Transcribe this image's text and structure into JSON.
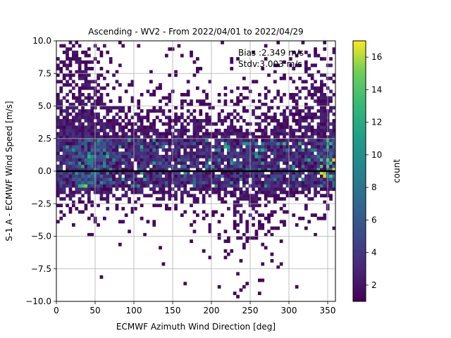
{
  "chart_data": {
    "type": "heatmap",
    "title": "Ascending - WV2 - From 2022/04/01 to 2022/04/29",
    "xlabel": "ECMWF Azimuth Wind Direction [deg]",
    "ylabel": "S-1 A - ECMWF Wind Speed [m/s]",
    "xlim": [
      0,
      360
    ],
    "ylim": [
      -10,
      10
    ],
    "x_ticks": [
      "0",
      "50",
      "100",
      "150",
      "200",
      "250",
      "300",
      "350"
    ],
    "y_ticks": [
      "−10.0",
      "−7.5",
      "−5.0",
      "−2.5",
      "0.0",
      "2.5",
      "5.0",
      "7.5",
      "10.0"
    ],
    "x_tick_values": [
      0,
      50,
      100,
      150,
      200,
      250,
      300,
      350
    ],
    "y_tick_values": [
      -10,
      -7.5,
      -5,
      -2.5,
      0,
      2.5,
      5,
      7.5,
      10
    ],
    "grid": true,
    "colormap": "viridis",
    "colorbar": {
      "label": "count",
      "min": 1,
      "max": 17,
      "ticks": [
        "2",
        "4",
        "6",
        "8",
        "10",
        "12",
        "14",
        "16"
      ],
      "tick_values": [
        2,
        4,
        6,
        8,
        10,
        12,
        14,
        16
      ]
    },
    "bins": {
      "x_count": 90,
      "y_count": 80,
      "x_width_deg": 4,
      "y_width_ms": 0.25
    },
    "density_description": "dense band between -1 and +2.5 m/s across all directions, highest counts near 30-60 deg and 350-360 deg; sparse tails reaching -9.5 m/s near 240-260 deg and +10 m/s near 0-60 and 300-360 deg",
    "reference_line": {
      "y": 0,
      "color": "#000000"
    },
    "annotations": [
      {
        "text": "Bias :2.349 m/s"
      },
      {
        "text": "Stdv:3.003 m/s"
      }
    ]
  }
}
